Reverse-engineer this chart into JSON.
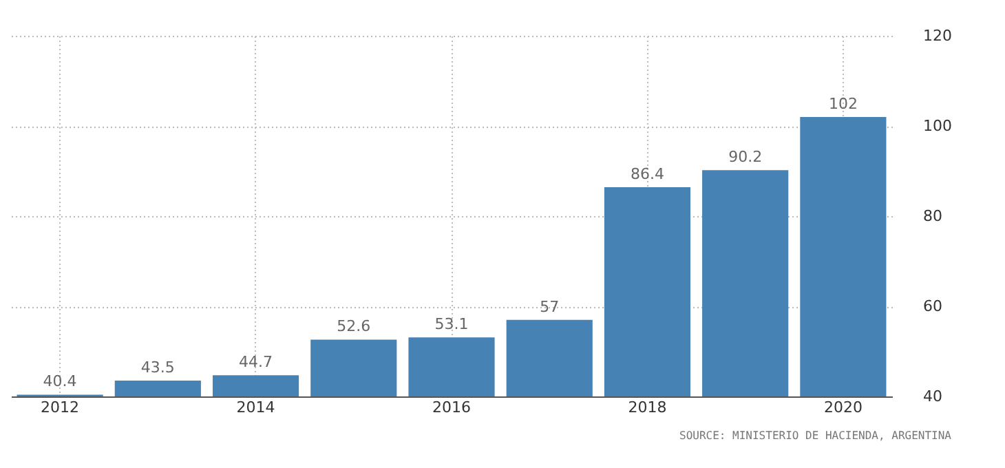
{
  "chart_data": {
    "type": "bar",
    "categories": [
      "2012",
      null,
      "2014",
      null,
      "2016",
      null,
      "2018",
      null,
      "2020"
    ],
    "values": [
      40.4,
      43.5,
      44.7,
      52.6,
      53.1,
      57,
      86.4,
      90.2,
      102
    ],
    "color": "#4682b4",
    "ylim": [
      40,
      120
    ],
    "yticks": [
      40,
      60,
      80,
      100,
      120
    ],
    "grid": true,
    "data_labels": true,
    "annotations": [
      "SOURCE: MINISTERIO DE HACIENDA, ARGENTINA"
    ]
  }
}
